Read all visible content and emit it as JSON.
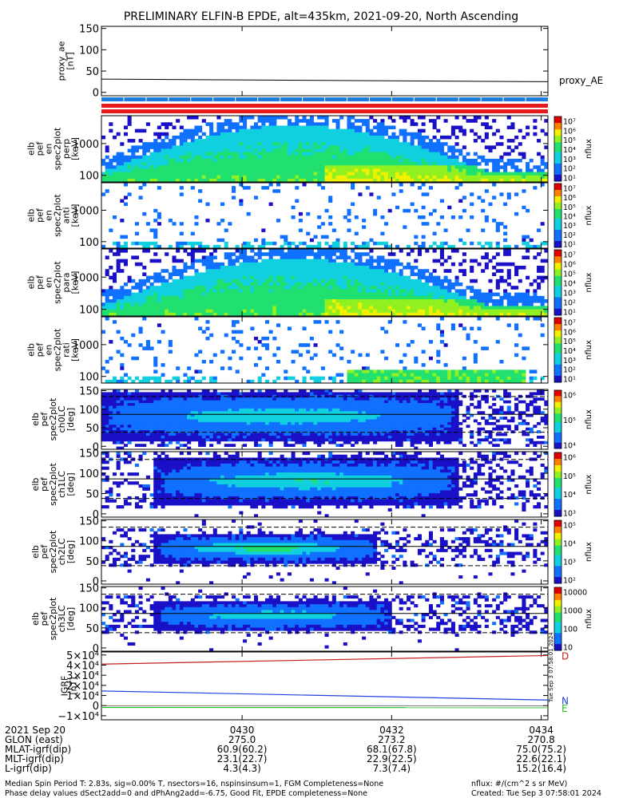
{
  "title": "PRELIMINARY ELFIN-B EPDE, alt=435km, 2021-09-20, North Ascending",
  "colors": {
    "status_blue": "#1b7de0",
    "status_red": "#e41a1c",
    "grf_red": "#c41e1e",
    "grf_blue": "#2040e0",
    "grf_green": "#22c022"
  },
  "chart_data": [
    {
      "type": "line",
      "name": "proxy_ae_panel",
      "ylabel": [
        "proxy_ae",
        "[nT]"
      ],
      "legend": "proxy_AE",
      "ylim": [
        -8,
        155
      ],
      "yticks": [
        "150",
        "100",
        "50",
        "0"
      ],
      "ytick_values": [
        150,
        100,
        50,
        0
      ],
      "series": [
        {
          "x": [
            0,
            0.5,
            1.0
          ],
          "values": [
            31,
            28,
            25
          ]
        }
      ]
    },
    {
      "type": "heatmap",
      "name": "spectrogram_perp_en",
      "ylabel": [
        "elb",
        "pef",
        "en",
        "spec2plot",
        "perp",
        "[keV]"
      ],
      "yticks": [
        "1000",
        "100"
      ],
      "colorbar_label": "nflux",
      "colorbar_ticks": [
        "10⁷",
        "10⁶",
        "10⁵",
        "10⁴",
        "10³",
        "10²",
        "10¹"
      ],
      "shape": "wide"
    },
    {
      "type": "heatmap",
      "name": "spectrogram_anti_en",
      "ylabel": [
        "elb",
        "pef",
        "en",
        "spec2plot",
        "anti",
        "[keV]"
      ],
      "yticks": [
        "1000",
        "100"
      ],
      "colorbar_label": "nflux",
      "colorbar_ticks": [
        "10⁷",
        "10⁶",
        "10⁵",
        "10⁴",
        "10³",
        "10²",
        "10¹"
      ],
      "shape": "sparse"
    },
    {
      "type": "heatmap",
      "name": "spectrogram_para_en",
      "ylabel": [
        "elb",
        "pef",
        "en",
        "spec2plot",
        "para",
        "[keV]"
      ],
      "yticks": [
        "1000",
        "100"
      ],
      "colorbar_label": "nflux",
      "colorbar_ticks": [
        "10⁷",
        "10⁶",
        "10⁵",
        "10⁴",
        "10³",
        "10²",
        "10¹"
      ],
      "shape": "wide"
    },
    {
      "type": "heatmap",
      "name": "spectrogram_rati_en",
      "ylabel": [
        "elb",
        "pef",
        "en",
        "spec2plot",
        "rati",
        "[keV]"
      ],
      "yticks": [
        "1000",
        "100"
      ],
      "colorbar_label": "nflux",
      "colorbar_ticks": [
        "10⁷",
        "10⁶",
        "10⁵",
        "10⁴",
        "10³",
        "10²",
        "10¹"
      ],
      "shape": "sparse_low"
    },
    {
      "type": "heatmap",
      "name": "spectrogram_ch0LC",
      "ylabel": [
        "elb",
        "pef",
        "spec2plot",
        "ch0LC",
        "[deg]"
      ],
      "yticks": [
        "150",
        "100",
        "50",
        "0"
      ],
      "colorbar_label": "nflux",
      "colorbar_ticks": [
        "10⁶",
        "10⁵",
        "10⁴"
      ],
      "shape": "pa_wide"
    },
    {
      "type": "heatmap",
      "name": "spectrogram_ch1LC",
      "ylabel": [
        "elb",
        "pef",
        "spec2plot",
        "ch1LC",
        "[deg]"
      ],
      "yticks": [
        "150",
        "100",
        "50",
        "0"
      ],
      "colorbar_label": "nflux",
      "colorbar_ticks": [
        "10⁶",
        "10⁵",
        "10⁴",
        "10³"
      ],
      "shape": "pa_mid"
    },
    {
      "type": "heatmap",
      "name": "spectrogram_ch2LC",
      "ylabel": [
        "elb",
        "pef",
        "spec2plot",
        "ch2LC",
        "[deg]"
      ],
      "yticks": [
        "150",
        "100",
        "50",
        "0"
      ],
      "colorbar_label": "nflux",
      "colorbar_ticks": [
        "10⁵",
        "10⁴",
        "10³",
        "10²"
      ],
      "shape": "pa_narrow"
    },
    {
      "type": "heatmap",
      "name": "spectrogram_ch3LC",
      "ylabel": [
        "elb",
        "pef",
        "spec2plot",
        "ch3LC",
        "[deg]"
      ],
      "yticks": [
        "150",
        "100",
        "50",
        "0"
      ],
      "colorbar_label": "nflux",
      "colorbar_ticks": [
        "10000",
        "1000",
        "100",
        "10"
      ],
      "shape": "pa_faint"
    },
    {
      "type": "line",
      "name": "igrf_panel",
      "ylabel": [
        "IGRF",
        "[nT]"
      ],
      "ylim": [
        -1.4,
        5.3
      ],
      "yticks": [
        "5×10⁴",
        "4×10⁴",
        "3×10⁴",
        "2×10⁴",
        "1×10⁴",
        "0",
        "−1×10⁴"
      ],
      "ytick_values": [
        5,
        4,
        3,
        2,
        1,
        0,
        -1
      ],
      "legend": [
        "D",
        "N",
        "E"
      ],
      "side_stamp": "Tue Sep  3 07:58:01 2024",
      "series": [
        {
          "name": "D",
          "x": [
            0,
            1
          ],
          "values": [
            4.1,
            4.95
          ]
        },
        {
          "name": "N",
          "x": [
            0,
            1
          ],
          "values": [
            1.45,
            0.55
          ]
        },
        {
          "name": "E",
          "x": [
            0,
            1
          ],
          "values": [
            -0.18,
            -0.2
          ]
        }
      ]
    }
  ],
  "xaxis": {
    "date": "2021 Sep 20",
    "ticks": [
      {
        "label": "0430",
        "x": 0.315,
        "glon": "275.0",
        "mlat": "60.9(60.2)",
        "mlt": "23.1(22.7)",
        "l": "4.3(4.3)"
      },
      {
        "label": "0432",
        "x": 0.65,
        "glon": "273.2",
        "mlat": "68.1(67.8)",
        "mlt": "22.9(22.5)",
        "l": "7.3(7.4)"
      },
      {
        "label": "0434",
        "x": 0.985,
        "glon": "270.8",
        "mlat": "75.0(75.2)",
        "mlt": "22.6(22.1)",
        "l": "15.2(16.4)"
      }
    ],
    "row_labels": [
      "GLON (east)",
      "MLAT-igrf(dip)",
      "MLT-igrf(dip)",
      "L-igrf(dip)"
    ]
  },
  "footer": {
    "line1": "Median Spin Period T: 2.83s, sig=0.00% T, nsectors=16, nspinsinsum=1, FGM Completeness=None",
    "line2": "Phase delay values dSect2add=0 and dPhAng2add=-6.75, Good Fit, EPDE completeness=None",
    "right1": "nflux: #/(cm^2 s sr MeV)",
    "right2": "Created: Tue Sep  3 07:58:01 2024"
  }
}
